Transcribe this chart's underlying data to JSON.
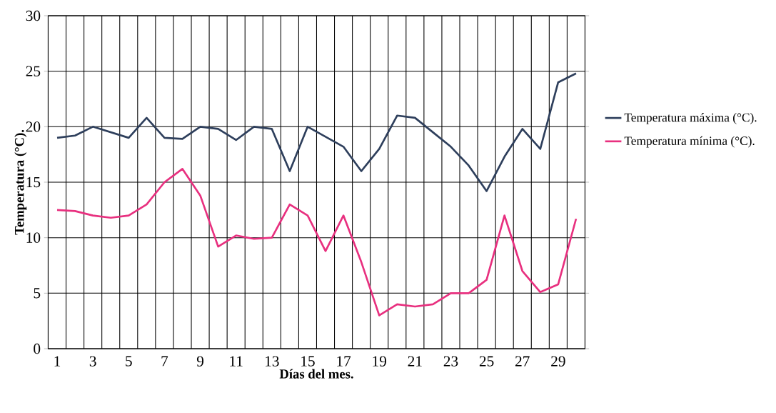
{
  "chart_data": {
    "type": "line",
    "xlabel": "Días del mes.",
    "ylabel": "Temperatura (°C).",
    "categories": [
      "1",
      null,
      "3",
      null,
      "5",
      null,
      "7",
      null,
      "9",
      null,
      "11",
      null,
      "13",
      null,
      "15",
      null,
      "17",
      null,
      "19",
      null,
      "21",
      null,
      "23",
      null,
      "25",
      null,
      "27",
      null,
      "29",
      null
    ],
    "series": [
      {
        "name": "Temperatura máxima (°C).",
        "color": "#2e3f5c",
        "values": [
          19,
          19.2,
          20,
          19.5,
          19,
          20.8,
          19,
          18.9,
          20,
          19.8,
          18.8,
          20,
          19.8,
          16,
          20,
          19.1,
          18.2,
          16,
          18,
          21,
          20.8,
          19.5,
          18.2,
          16.5,
          14.2,
          17.3,
          19.8,
          18,
          24,
          24.8
        ]
      },
      {
        "name": "Temperatura mínima (°C).",
        "color": "#e8307f",
        "values": [
          12.5,
          12.4,
          12,
          11.8,
          12,
          13,
          15,
          16.2,
          13.8,
          9.2,
          10.2,
          9.9,
          10,
          13,
          12,
          8.8,
          12,
          7.8,
          3,
          4,
          3.8,
          4,
          5,
          5,
          6.2,
          12,
          7,
          5.1,
          5.8,
          11.7
        ]
      }
    ],
    "ylim": [
      0,
      30
    ],
    "yticks": [
      0,
      5,
      10,
      15,
      20,
      25,
      30
    ],
    "grid": true,
    "legend": "right",
    "marker": "none",
    "line_style": "solid"
  }
}
